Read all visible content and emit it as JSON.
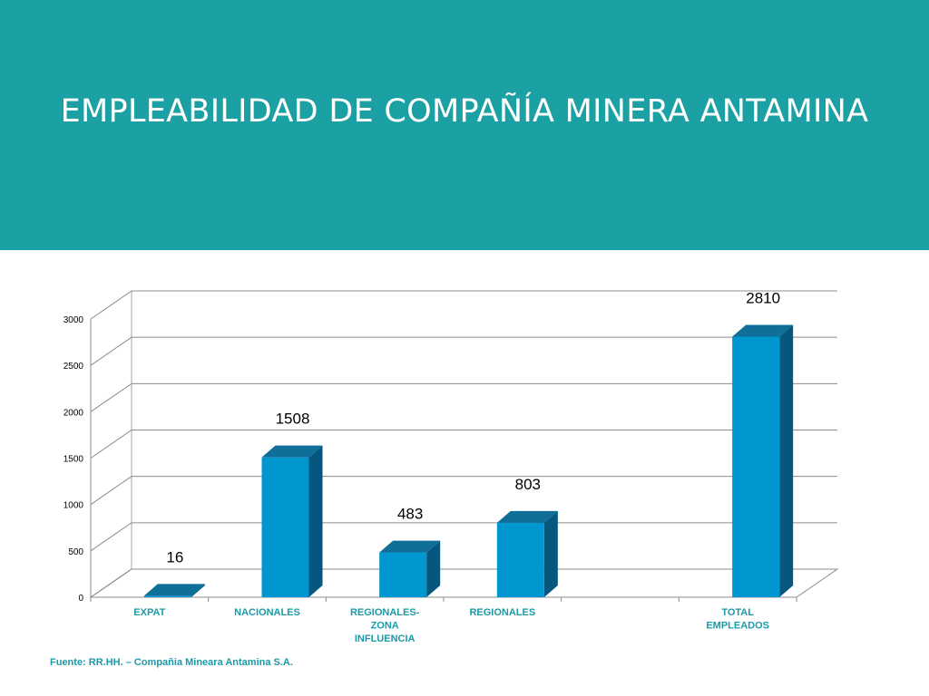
{
  "slide": {
    "title": "EMPLEABILIDAD DE COMPAÑÍA MINERA ANTAMINA",
    "source_note": "Fuente: RR.HH. – Compañia Mineara Antamina S.A."
  },
  "colors": {
    "banner": "#1ba0a4",
    "bar_front": "#0096cf",
    "bar_top": "#0f6f99",
    "bar_side": "#06577d",
    "category_label": "#1b9aa8"
  },
  "chart_data": {
    "type": "bar",
    "style": "3d-clustered-column",
    "categories": [
      [
        "EXPAT"
      ],
      [
        "NACIONALES"
      ],
      [
        "REGIONALES-",
        "ZONA",
        "INFLUENCIA"
      ],
      [
        "REGIONALES"
      ],
      [
        ""
      ],
      [
        "TOTAL",
        "EMPLEADOS"
      ]
    ],
    "values": [
      16,
      1508,
      483,
      803,
      null,
      2810
    ],
    "data_labels": [
      "16",
      "1508",
      "483",
      "803",
      "",
      "2810"
    ],
    "yticks": [
      0,
      500,
      1000,
      1500,
      2000,
      2500,
      3000
    ],
    "ylim": [
      0,
      3000
    ],
    "grid": true,
    "legend": "none",
    "title": "",
    "xlabel": "",
    "ylabel": ""
  }
}
